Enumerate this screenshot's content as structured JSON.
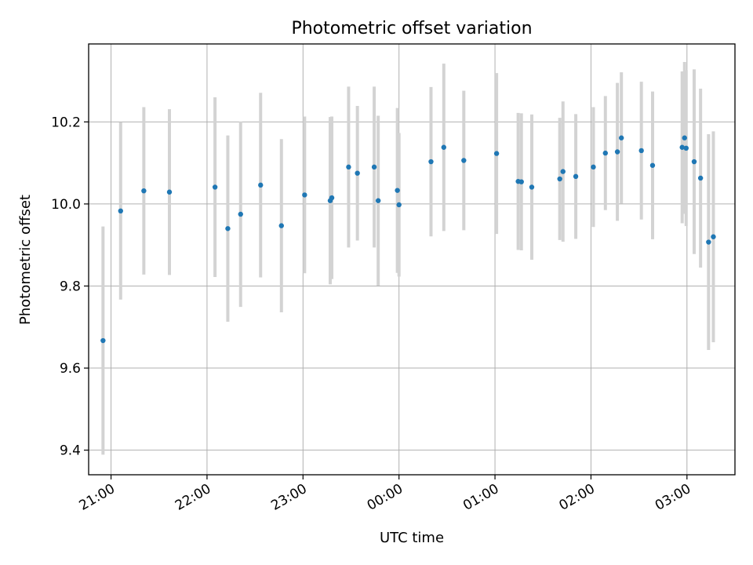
{
  "chart_data": {
    "type": "scatter",
    "title": "Photometric offset variation",
    "xlabel": "UTC time",
    "ylabel": "Photometric offset",
    "x_unit": "minutes",
    "x_range": [
      -14,
      390
    ],
    "ylim": [
      9.34,
      10.39
    ],
    "grid": true,
    "point_color": "#1f77b4",
    "errorbar_color": "#d3d3d3",
    "x_ticks": [
      {
        "label": "21:00",
        "value": 0
      },
      {
        "label": "22:00",
        "value": 60
      },
      {
        "label": "23:00",
        "value": 120
      },
      {
        "label": "00:00",
        "value": 180
      },
      {
        "label": "01:00",
        "value": 240
      },
      {
        "label": "02:00",
        "value": 300
      },
      {
        "label": "03:00",
        "value": 360
      }
    ],
    "y_ticks": [
      "9.4",
      "9.6",
      "9.8",
      "10.0",
      "10.2"
    ],
    "points": [
      {
        "t": -5.0,
        "y": 9.667,
        "err": 0.278
      },
      {
        "t": 6.0,
        "y": 9.983,
        "err": 0.216
      },
      {
        "t": 20.5,
        "y": 10.032,
        "err": 0.204
      },
      {
        "t": 36.5,
        "y": 10.029,
        "err": 0.202
      },
      {
        "t": 65.0,
        "y": 10.041,
        "err": 0.219
      },
      {
        "t": 73.0,
        "y": 9.94,
        "err": 0.227
      },
      {
        "t": 81.0,
        "y": 9.975,
        "err": 0.226
      },
      {
        "t": 93.5,
        "y": 10.046,
        "err": 0.225
      },
      {
        "t": 106.5,
        "y": 9.947,
        "err": 0.211
      },
      {
        "t": 121.0,
        "y": 10.022,
        "err": 0.191
      },
      {
        "t": 137.0,
        "y": 10.008,
        "err": 0.204
      },
      {
        "t": 138.0,
        "y": 10.015,
        "err": 0.198
      },
      {
        "t": 148.5,
        "y": 10.09,
        "err": 0.196
      },
      {
        "t": 154.0,
        "y": 10.075,
        "err": 0.164
      },
      {
        "t": 164.5,
        "y": 10.09,
        "err": 0.196
      },
      {
        "t": 167.0,
        "y": 10.008,
        "err": 0.207
      },
      {
        "t": 179.0,
        "y": 10.033,
        "err": 0.201
      },
      {
        "t": 180.0,
        "y": 9.998,
        "err": 0.175
      },
      {
        "t": 200.0,
        "y": 10.103,
        "err": 0.182
      },
      {
        "t": 208.0,
        "y": 10.138,
        "err": 0.204
      },
      {
        "t": 220.5,
        "y": 10.106,
        "err": 0.17
      },
      {
        "t": 241.0,
        "y": 10.123,
        "err": 0.196
      },
      {
        "t": 254.5,
        "y": 10.055,
        "err": 0.167
      },
      {
        "t": 256.5,
        "y": 10.054,
        "err": 0.167
      },
      {
        "t": 263.0,
        "y": 10.041,
        "err": 0.177
      },
      {
        "t": 280.5,
        "y": 10.061,
        "err": 0.149
      },
      {
        "t": 282.5,
        "y": 10.079,
        "err": 0.171
      },
      {
        "t": 290.5,
        "y": 10.067,
        "err": 0.152
      },
      {
        "t": 301.5,
        "y": 10.09,
        "err": 0.146
      },
      {
        "t": 309.0,
        "y": 10.124,
        "err": 0.139
      },
      {
        "t": 316.5,
        "y": 10.127,
        "err": 0.168
      },
      {
        "t": 319.0,
        "y": 10.161,
        "err": 0.16
      },
      {
        "t": 331.5,
        "y": 10.13,
        "err": 0.168
      },
      {
        "t": 338.5,
        "y": 10.094,
        "err": 0.18
      },
      {
        "t": 357.0,
        "y": 10.138,
        "err": 0.185
      },
      {
        "t": 358.5,
        "y": 10.161,
        "err": 0.185
      },
      {
        "t": 359.5,
        "y": 10.136,
        "err": 0.19
      },
      {
        "t": 364.5,
        "y": 10.103,
        "err": 0.225
      },
      {
        "t": 368.5,
        "y": 10.063,
        "err": 0.218
      },
      {
        "t": 373.5,
        "y": 9.907,
        "err": 0.263
      },
      {
        "t": 376.5,
        "y": 9.92,
        "err": 0.257
      }
    ]
  }
}
